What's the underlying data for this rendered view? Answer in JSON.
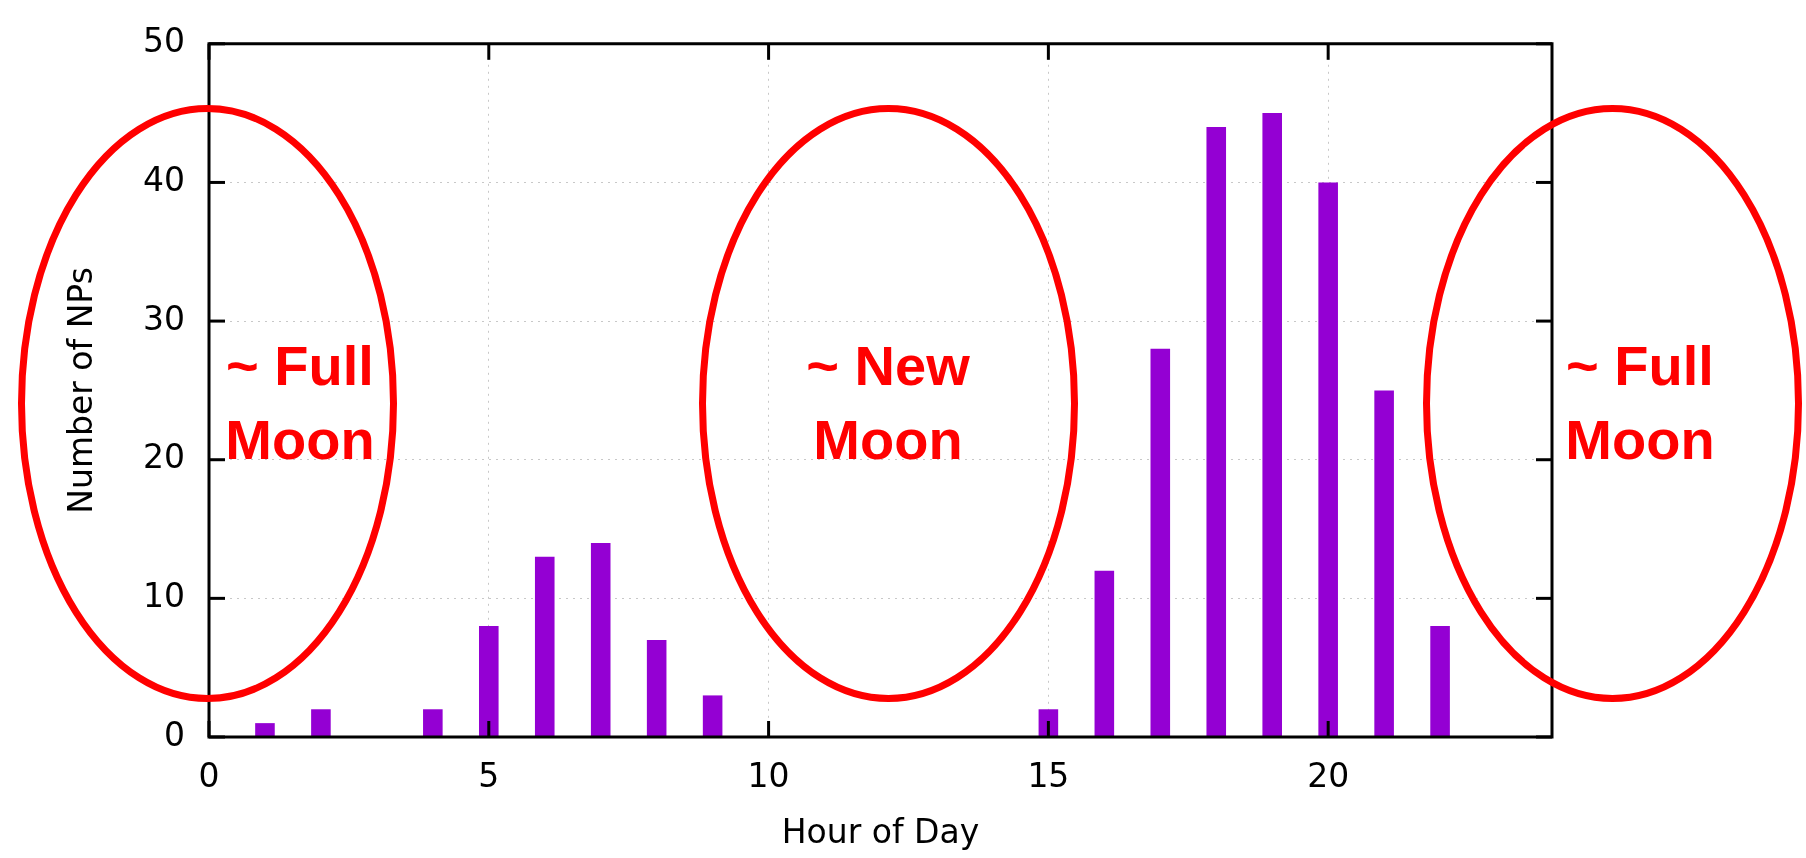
{
  "chart_data": {
    "type": "bar",
    "xlabel": "Hour of Day",
    "ylabel": "Number of NPs",
    "x": [
      1,
      2,
      4,
      5,
      6,
      7,
      8,
      9,
      15,
      16,
      17,
      18,
      19,
      20,
      21,
      22
    ],
    "values": [
      1,
      2,
      2,
      8,
      13,
      14,
      7,
      3,
      2,
      12,
      28,
      44,
      45,
      40,
      25,
      8
    ],
    "color": "#9400d3",
    "xlim": [
      0,
      24
    ],
    "xticks": [
      0,
      5,
      10,
      15,
      20
    ],
    "ylim": [
      0,
      50
    ],
    "yticks": [
      0,
      10,
      20,
      30,
      40,
      50
    ],
    "grid": true,
    "annotations": [
      "~ Full Moon",
      "~ New Moon",
      "~ Full Moon"
    ]
  }
}
